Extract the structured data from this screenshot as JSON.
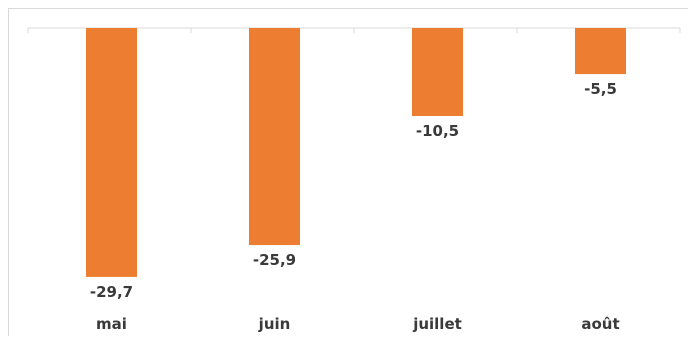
{
  "chart_data": {
    "type": "bar",
    "categories": [
      "mai",
      "juin",
      "juillet",
      "août"
    ],
    "values": [
      -29.7,
      -25.9,
      -10.5,
      -5.5
    ],
    "data_labels": [
      "-29,7",
      "-25,9",
      "-10,5",
      "-5,5"
    ],
    "bar_color": "#ED7D31",
    "title": "",
    "xlabel": "",
    "ylabel": "",
    "ylim": [
      -31.5,
      0
    ],
    "grid": false,
    "legend": "none"
  }
}
